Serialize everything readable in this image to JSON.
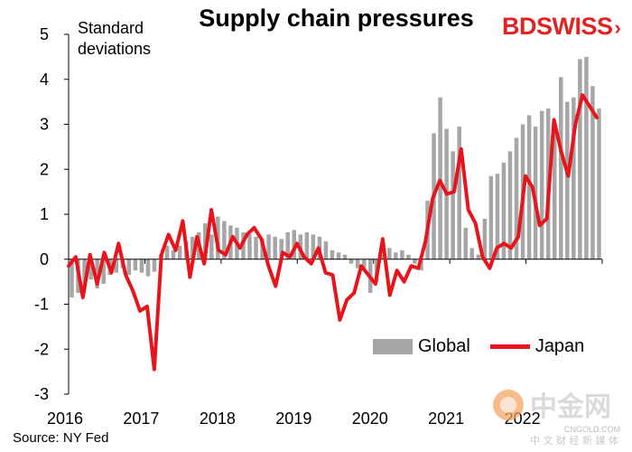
{
  "chart_data": {
    "type": "bar+line",
    "title": "Supply chain pressures",
    "ylabel": "Standard deviations",
    "source": "Source:  NY Fed",
    "ylim": [
      -3,
      5
    ],
    "yticks": [
      -3,
      -2,
      -1,
      0,
      1,
      2,
      3,
      4,
      5
    ],
    "xticks": [
      "2016",
      "2017",
      "2018",
      "2019",
      "2020",
      "2021",
      "2022"
    ],
    "grid": false,
    "legend_position": "bottom-right",
    "series": [
      {
        "name": "Global",
        "kind": "bar",
        "color": "#a6a6a6",
        "values": [
          -0.85,
          -0.75,
          -0.65,
          -0.45,
          -0.65,
          -0.55,
          -0.35,
          -0.3,
          -0.2,
          -0.35,
          -0.25,
          -0.3,
          -0.38,
          -0.28,
          0.1,
          0.3,
          0.2,
          0.3,
          0.4,
          0.5,
          0.6,
          0.8,
          0.55,
          0.95,
          0.85,
          0.75,
          0.7,
          0.6,
          0.55,
          0.5,
          0.45,
          0.55,
          0.5,
          0.45,
          0.6,
          0.65,
          0.55,
          0.6,
          0.55,
          0.5,
          0.4,
          0.2,
          0.15,
          0.1,
          -0.1,
          -0.2,
          -0.25,
          -0.75,
          -0.5,
          0.1,
          0.25,
          0.15,
          0.2,
          0.1,
          -0.1,
          -0.25,
          1.3,
          2.8,
          3.6,
          2.9,
          2.4,
          2.95,
          0.7,
          0.25,
          0.1,
          0.9,
          1.85,
          1.9,
          2.15,
          2.4,
          2.7,
          3.0,
          3.2,
          2.95,
          3.3,
          3.35,
          3.0,
          4.05,
          3.5,
          3.6,
          4.45,
          4.5,
          3.85,
          3.35
        ]
      },
      {
        "name": "Japan",
        "kind": "line",
        "color": "#e8141b",
        "values": [
          -0.15,
          0.05,
          -0.85,
          0.1,
          -0.55,
          0.15,
          -0.3,
          0.35,
          -0.35,
          -0.7,
          -1.15,
          -1.05,
          -2.45,
          0.1,
          0.55,
          0.2,
          0.85,
          -0.4,
          0.5,
          -0.1,
          1.1,
          0.2,
          0.1,
          0.5,
          0.25,
          0.55,
          0.7,
          0.45,
          -0.15,
          -0.6,
          0.15,
          0.05,
          0.35,
          0.05,
          -0.1,
          0.25,
          -0.3,
          -0.35,
          -1.35,
          -0.9,
          -0.75,
          -0.15,
          -0.35,
          -0.55,
          0.45,
          -0.8,
          -0.25,
          -0.5,
          -0.15,
          -0.2,
          0.4,
          1.35,
          1.75,
          1.45,
          1.5,
          2.45,
          1.1,
          0.8,
          0.05,
          -0.2,
          0.25,
          0.35,
          0.25,
          0.5,
          1.85,
          1.6,
          0.75,
          0.9,
          3.1,
          2.4,
          1.85,
          3.0,
          3.65,
          3.4,
          3.15
        ]
      }
    ]
  },
  "logo": {
    "left": "BD",
    "right": "SWISS"
  },
  "watermark": {
    "text": "中金网",
    "subtext": "CNGOLD.COM",
    "caption": "中 文 财 经 新 媒 体"
  }
}
